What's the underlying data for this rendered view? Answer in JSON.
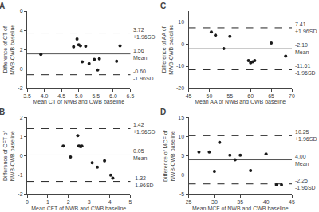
{
  "chart_data": [
    {
      "type": "scatter",
      "title": "A",
      "xlabel": "Mean CT of NWB and CWB baseline",
      "ylabel": "Difference of CT of\nNWB-CWB baseline",
      "x": [
        3.9,
        4.85,
        4.95,
        5.0,
        5.05,
        5.1,
        5.2,
        5.3,
        5.45,
        5.55,
        5.6,
        6.1,
        6.2
      ],
      "values": [
        1.5,
        2.3,
        3.1,
        2.5,
        2.4,
        0.75,
        2.35,
        0.55,
        1.0,
        -0.1,
        1.05,
        0.8,
        2.4
      ],
      "color": "#1a1a1a",
      "marker": "circle",
      "grid": false,
      "xlim": [
        3.5,
        6.5
      ],
      "xticks": [
        3.5,
        {
          "value": 4.0,
          "label": "4.0"
        },
        4.5,
        {
          "value": 5.0,
          "label": "5.0"
        },
        5.5,
        {
          "value": 6.0,
          "label": "6.0"
        },
        6.5
      ],
      "ylim": [
        -2,
        6
      ],
      "yticks": [
        -2,
        0,
        2,
        4,
        6
      ],
      "reference_lines": [
        {
          "value": 1.56,
          "value_label": "1.56",
          "label": "Mean",
          "color": "#555555",
          "line_style": "solid"
        },
        {
          "value": 3.72,
          "value_label": "3.72",
          "label": "+1.96SD",
          "color": "#222222",
          "line_style": "dashed"
        },
        {
          "value": -0.6,
          "value_label": "-0.60",
          "label": "-1.96SD",
          "color": "#222222",
          "line_style": "dashed"
        }
      ]
    },
    {
      "type": "scatter",
      "title": "C",
      "xlabel": "Mean AA of NWB and CWB baseline",
      "ylabel": "Difference of AA of\nNWB-CWB baseline",
      "x": [
        50.5,
        51.5,
        53.5,
        55.0,
        59.5,
        60.0,
        60.5,
        61.0,
        65.0,
        68.5
      ],
      "values": [
        5.5,
        4.0,
        -2.0,
        3.5,
        -7.5,
        -8.5,
        -8.0,
        -7.5,
        0.5,
        -5.5
      ],
      "color": "#1a1a1a",
      "marker": "circle",
      "grid": false,
      "xlim": [
        45,
        70
      ],
      "xticks": [
        45,
        50,
        55,
        60,
        65,
        70
      ],
      "ylim": [
        -20,
        15
      ],
      "yticks": [
        -20,
        -10,
        0,
        10
      ],
      "reference_lines": [
        {
          "value": -2.1,
          "value_label": "-2.10",
          "label": "Mean",
          "color": "#555555",
          "line_style": "solid"
        },
        {
          "value": 7.41,
          "value_label": "7.41",
          "label": "+1.96SD",
          "color": "#222222",
          "line_style": "dashed"
        },
        {
          "value": -11.61,
          "value_label": "-11.61",
          "label": "-1.96SD",
          "color": "#222222",
          "line_style": "dashed"
        }
      ]
    },
    {
      "type": "scatter",
      "title": "B",
      "xlabel": "Mean CFT of NWB and CWB baseline",
      "ylabel": "Difference of CFT of\nNWB-CWB baseline",
      "x": [
        1.75,
        2.1,
        2.45,
        2.5,
        2.55,
        2.6,
        2.65,
        3.15,
        3.4,
        3.75,
        4.05,
        4.15
      ],
      "values": [
        0.52,
        -0.05,
        1.05,
        0.52,
        0.5,
        0.48,
        0.52,
        -0.35,
        -0.58,
        -0.25,
        -1.0,
        -1.15
      ],
      "color": "#1a1a1a",
      "marker": "circle",
      "grid": false,
      "xlim": [
        0,
        5
      ],
      "xticks": [
        0,
        1,
        2,
        3,
        4,
        5
      ],
      "ylim": [
        -2,
        2
      ],
      "yticks": [
        -2,
        -1,
        0,
        1,
        2
      ],
      "reference_lines": [
        {
          "value": 0.05,
          "value_label": "0.05",
          "label": "Mean",
          "color": "#555555",
          "line_style": "solid"
        },
        {
          "value": 1.42,
          "value_label": "1.42",
          "label": "+1.96SD",
          "color": "#222222",
          "line_style": "dashed"
        },
        {
          "value": -1.32,
          "value_label": "-1.32",
          "label": "-1.96SD",
          "color": "#222222",
          "line_style": "dashed"
        }
      ]
    },
    {
      "type": "scatter",
      "title": "D",
      "xlabel": "Mean MCF of NWB and CWB baseline",
      "ylabel": "Difference of MCF of\nNWB-CWB baseline",
      "x": [
        27,
        29,
        30,
        31,
        33,
        34,
        35,
        37,
        40,
        42,
        43
      ],
      "values": [
        6.0,
        6.0,
        1.0,
        8.5,
        5.2,
        4.0,
        5.2,
        1.2,
        5.5,
        -2.5,
        -2.5
      ],
      "color": "#1a1a1a",
      "marker": "circle",
      "grid": false,
      "xlim": [
        25,
        45
      ],
      "xticks": [
        25,
        30,
        35,
        40,
        45
      ],
      "ylim": [
        -5,
        15
      ],
      "yticks": [
        -5,
        0,
        5,
        10,
        15
      ],
      "reference_lines": [
        {
          "value": 4.0,
          "value_label": "4.00",
          "label": "Mean",
          "color": "#555555",
          "line_style": "solid"
        },
        {
          "value": 10.25,
          "value_label": "10.25",
          "label": "+1.96SD",
          "color": "#222222",
          "line_style": "dashed"
        },
        {
          "value": -2.25,
          "value_label": "-2.25",
          "label": "-1.96SD",
          "color": "#222222",
          "line_style": "dashed"
        }
      ]
    }
  ]
}
